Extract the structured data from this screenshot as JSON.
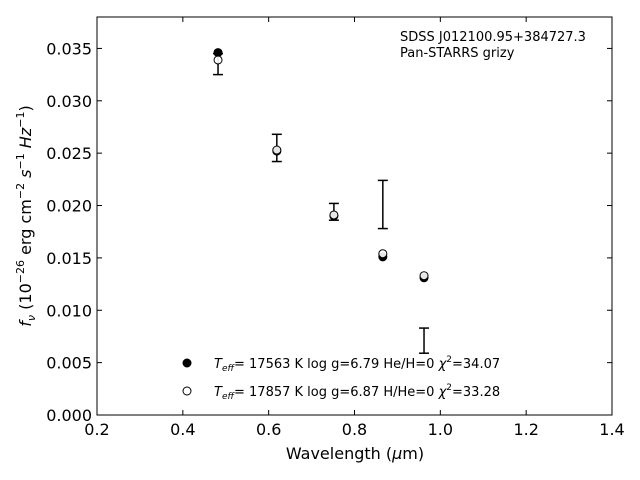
{
  "chart_data": {
    "type": "scatter",
    "annotation_lines": [
      "SDSS J012100.95+384727.3",
      "Pan-STARRS grizy"
    ],
    "xlabel": {
      "main": "Wavelength (",
      "mu": "μ",
      "unit": "m)"
    },
    "ylabel": {
      "f": "f",
      "nu": "ν",
      "rest": " (10",
      "exp26": "−26",
      "ergcm": " erg cm",
      "expm2": "−2",
      "s": " s",
      "expm1": "−1",
      "hz": " Hz",
      "expm1b": "−1",
      "close": ")"
    },
    "xlim": [
      0.2,
      1.4
    ],
    "ylim": [
      0.0,
      0.038
    ],
    "xticks": [
      0.2,
      0.4,
      0.6,
      0.8,
      1.0,
      1.2,
      1.4
    ],
    "xtick_labels": [
      "0.2",
      "0.4",
      "0.6",
      "0.8",
      "1.0",
      "1.2",
      "1.4"
    ],
    "yticks": [
      0.0,
      0.005,
      0.01,
      0.015,
      0.02,
      0.025,
      0.03,
      0.035
    ],
    "ytick_labels": [
      "0.000",
      "0.005",
      "0.010",
      "0.015",
      "0.020",
      "0.025",
      "0.030",
      "0.035"
    ],
    "legend_placement": "lower-left",
    "observed": {
      "x": [
        0.482,
        0.619,
        0.752,
        0.866,
        0.962
      ],
      "y": [
        0.0335,
        0.0255,
        0.0194,
        0.0201,
        0.0071
      ],
      "yerr": [
        0.001,
        0.0013,
        0.0008,
        0.0023,
        0.0012
      ]
    },
    "series": [
      {
        "marker": "filled",
        "legend": {
          "T": "T",
          "eff": "eff",
          "text": "= 17563 K  log g=6.79  He/H=0  ",
          "chi": "χ",
          "two": "2",
          "val": "=34.07"
        },
        "x": [
          0.482,
          0.619,
          0.752,
          0.866,
          0.962
        ],
        "y": [
          0.0346,
          0.0252,
          0.019,
          0.0151,
          0.0131
        ]
      },
      {
        "marker": "open",
        "legend": {
          "T": "T",
          "eff": "eff",
          "text": "= 17857 K  log g=6.87  H/He=0  ",
          "chi": "χ",
          "two": "2",
          "val": "=33.28"
        },
        "x": [
          0.482,
          0.619,
          0.752,
          0.866,
          0.962
        ],
        "y": [
          0.0339,
          0.0253,
          0.0191,
          0.0154,
          0.0133
        ]
      }
    ]
  }
}
